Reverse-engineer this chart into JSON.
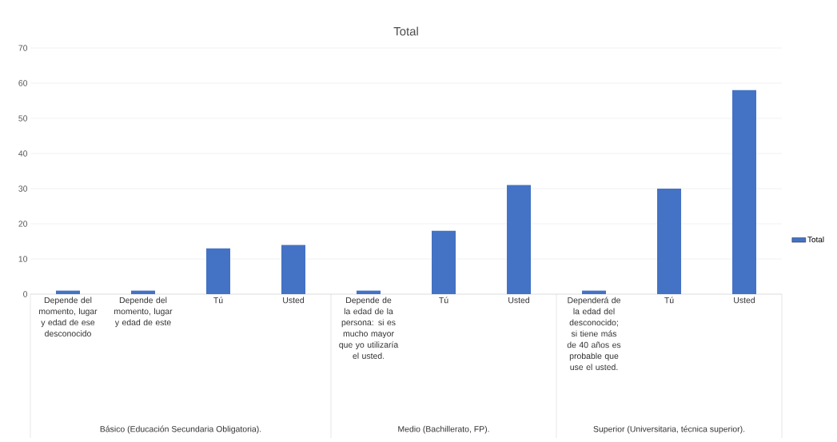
{
  "chart_data": {
    "type": "bar",
    "title": "Total",
    "categories": [
      "Depende del momento, lugar y edad de ese desconocido",
      "Depende del momento, lugar y edad de este",
      "Tú",
      "Usted",
      "Depende de la edad de la persona: si es mucho mayor que yo utilizaría el usted.",
      "Tú",
      "Usted",
      "Dependerá de la edad del desconocido; si tiene más de 40 años es probable que use el usted.",
      "Tú",
      "Usted"
    ],
    "series": [
      {
        "name": "Total",
        "color": "#4472c4",
        "values": [
          1,
          1,
          13,
          14,
          1,
          18,
          31,
          1,
          30,
          58
        ]
      }
    ],
    "annotations": [
      "Básico (Educación Secundaria Obligatoria).",
      "Medio (Bachillerato, FP).",
      "Superior (Universitaria, técnica superior)."
    ],
    "ylim": [
      0,
      70
    ],
    "yticks": [
      0,
      10,
      20,
      30,
      40,
      50,
      60,
      70
    ],
    "grid": "y",
    "legend": "right"
  }
}
